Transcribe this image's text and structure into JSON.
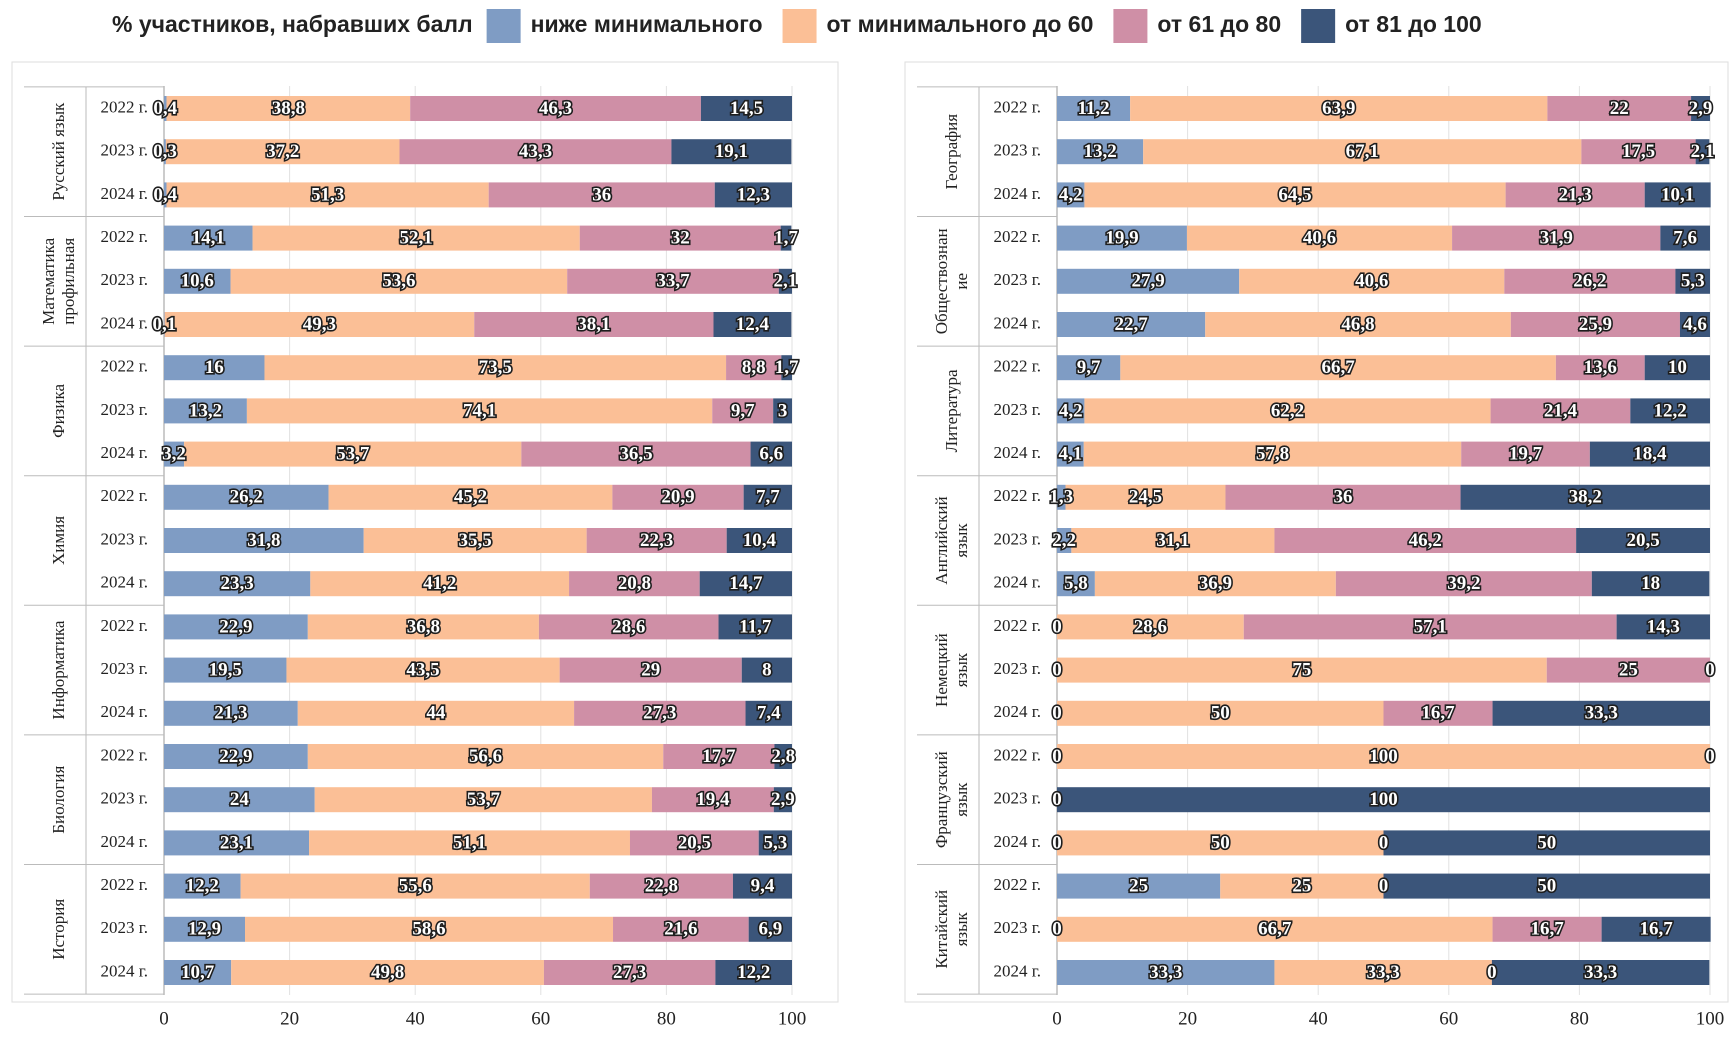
{
  "legend": {
    "title": "% участников, набравших балл",
    "items": [
      {
        "name": "ниже минимального",
        "color": "#7f9cc4"
      },
      {
        "name": "от минимального до 60",
        "color": "#fbbf96"
      },
      {
        "name": "от 61 до 80",
        "color": "#cf8fa6"
      },
      {
        "name": "от 81 до 100",
        "color": "#3b557a"
      }
    ]
  },
  "chart_data": [
    {
      "type": "bar",
      "orientation": "horizontal",
      "stacked": true,
      "xlim": [
        0,
        100
      ],
      "xticks": [
        0,
        20,
        40,
        60,
        80,
        100
      ],
      "grid": true,
      "groups": [
        {
          "label": [
            "Русский язык"
          ],
          "rows": [
            {
              "category": "2022 г.",
              "values": [
                0.4,
                38.8,
                46.3,
                14.5
              ],
              "value_labels": [
                "0,4",
                "38,8",
                "46,3",
                "14,5"
              ]
            },
            {
              "category": "2023 г.",
              "values": [
                0.3,
                37.2,
                43.3,
                19.1
              ],
              "value_labels": [
                "0,3",
                "37,2",
                "43,3",
                "19,1"
              ]
            },
            {
              "category": "2024 г.",
              "values": [
                0.4,
                51.3,
                36,
                12.3
              ],
              "value_labels": [
                "0,4",
                "51,3",
                "36",
                "12,3"
              ]
            }
          ]
        },
        {
          "label": [
            "Математика",
            "профильная"
          ],
          "rows": [
            {
              "category": "2022 г.",
              "values": [
                14.1,
                52.1,
                32,
                1.7
              ],
              "value_labels": [
                "14,1",
                "52,1",
                "32",
                "1,7"
              ]
            },
            {
              "category": "2023 г.",
              "values": [
                10.6,
                53.6,
                33.7,
                2.1
              ],
              "value_labels": [
                "10,6",
                "53,6",
                "33,7",
                "2,1"
              ]
            },
            {
              "category": "2024 г.",
              "values": [
                0.1,
                49.3,
                38.1,
                12.4
              ],
              "value_labels": [
                "0,1",
                "49,3",
                "38,1",
                "12,4"
              ]
            }
          ]
        },
        {
          "label": [
            "Физика"
          ],
          "rows": [
            {
              "category": "2022 г.",
              "values": [
                16,
                73.5,
                8.8,
                1.7
              ],
              "value_labels": [
                "16",
                "73,5",
                "8,8",
                "1,7"
              ]
            },
            {
              "category": "2023 г.",
              "values": [
                13.2,
                74.1,
                9.7,
                3
              ],
              "value_labels": [
                "13,2",
                "74,1",
                "9,7",
                "3"
              ]
            },
            {
              "category": "2024 г.",
              "values": [
                3.2,
                53.7,
                36.5,
                6.6
              ],
              "value_labels": [
                "3,2",
                "53,7",
                "36,5",
                "6,6"
              ]
            }
          ]
        },
        {
          "label": [
            "Химия"
          ],
          "rows": [
            {
              "category": "2022 г.",
              "values": [
                26.2,
                45.2,
                20.9,
                7.7
              ],
              "value_labels": [
                "26,2",
                "45,2",
                "20,9",
                "7,7"
              ]
            },
            {
              "category": "2023 г.",
              "values": [
                31.8,
                35.5,
                22.3,
                10.4
              ],
              "value_labels": [
                "31,8",
                "35,5",
                "22,3",
                "10,4"
              ]
            },
            {
              "category": "2024 г.",
              "values": [
                23.3,
                41.2,
                20.8,
                14.7
              ],
              "value_labels": [
                "23,3",
                "41,2",
                "20,8",
                "14,7"
              ]
            }
          ]
        },
        {
          "label": [
            "Информатика"
          ],
          "rows": [
            {
              "category": "2022 г.",
              "values": [
                22.9,
                36.8,
                28.6,
                11.7
              ],
              "value_labels": [
                "22,9",
                "36,8",
                "28,6",
                "11,7"
              ]
            },
            {
              "category": "2023 г.",
              "values": [
                19.5,
                43.5,
                29,
                8
              ],
              "value_labels": [
                "19,5",
                "43,5",
                "29",
                "8"
              ]
            },
            {
              "category": "2024 г.",
              "values": [
                21.3,
                44,
                27.3,
                7.4
              ],
              "value_labels": [
                "21,3",
                "44",
                "27,3",
                "7,4"
              ]
            }
          ]
        },
        {
          "label": [
            "Биология"
          ],
          "rows": [
            {
              "category": "2022 г.",
              "values": [
                22.9,
                56.6,
                17.7,
                2.8
              ],
              "value_labels": [
                "22,9",
                "56,6",
                "17,7",
                "2,8"
              ]
            },
            {
              "category": "2023 г.",
              "values": [
                24,
                53.7,
                19.4,
                2.9
              ],
              "value_labels": [
                "24",
                "53,7",
                "19,4",
                "2,9"
              ]
            },
            {
              "category": "2024 г.",
              "values": [
                23.1,
                51.1,
                20.5,
                5.3
              ],
              "value_labels": [
                "23,1",
                "51,1",
                "20,5",
                "5,3"
              ]
            }
          ]
        },
        {
          "label": [
            "История"
          ],
          "rows": [
            {
              "category": "2022 г.",
              "values": [
                12.2,
                55.6,
                22.8,
                9.4
              ],
              "value_labels": [
                "12,2",
                "55,6",
                "22,8",
                "9,4"
              ]
            },
            {
              "category": "2023 г.",
              "values": [
                12.9,
                58.6,
                21.6,
                6.9
              ],
              "value_labels": [
                "12,9",
                "58,6",
                "21,6",
                "6,9"
              ]
            },
            {
              "category": "2024 г.",
              "values": [
                10.7,
                49.8,
                27.3,
                12.2
              ],
              "value_labels": [
                "10,7",
                "49,8",
                "27,3",
                "12,2"
              ]
            }
          ]
        }
      ]
    },
    {
      "type": "bar",
      "orientation": "horizontal",
      "stacked": true,
      "xlim": [
        0,
        100
      ],
      "xticks": [
        0,
        20,
        40,
        60,
        80,
        100
      ],
      "grid": true,
      "groups": [
        {
          "label": [
            "География"
          ],
          "rows": [
            {
              "category": "2022 г.",
              "values": [
                11.2,
                63.9,
                22,
                2.9
              ],
              "value_labels": [
                "11,2",
                "63,9",
                "22",
                "2,9"
              ]
            },
            {
              "category": "2023 г.",
              "values": [
                13.2,
                67.1,
                17.5,
                2.1
              ],
              "value_labels": [
                "13,2",
                "67,1",
                "17,5",
                "2,1"
              ]
            },
            {
              "category": "2024 г.",
              "values": [
                4.2,
                64.5,
                21.3,
                10.1
              ],
              "value_labels": [
                "4,2",
                "64,5",
                "21,3",
                "10,1"
              ]
            }
          ]
        },
        {
          "label": [
            "Обществознан",
            "ие"
          ],
          "rows": [
            {
              "category": "2022 г.",
              "values": [
                19.9,
                40.6,
                31.9,
                7.6
              ],
              "value_labels": [
                "19,9",
                "40,6",
                "31,9",
                "7,6"
              ]
            },
            {
              "category": "2023 г.",
              "values": [
                27.9,
                40.6,
                26.2,
                5.3
              ],
              "value_labels": [
                "27,9",
                "40,6",
                "26,2",
                "5,3"
              ]
            },
            {
              "category": "2024 г.",
              "values": [
                22.7,
                46.8,
                25.9,
                4.6
              ],
              "value_labels": [
                "22,7",
                "46,8",
                "25,9",
                "4,6"
              ]
            }
          ]
        },
        {
          "label": [
            "Литература"
          ],
          "rows": [
            {
              "category": "2022 г.",
              "values": [
                9.7,
                66.7,
                13.6,
                10
              ],
              "value_labels": [
                "9,7",
                "66,7",
                "13,6",
                "10"
              ]
            },
            {
              "category": "2023 г.",
              "values": [
                4.2,
                62.2,
                21.4,
                12.2
              ],
              "value_labels": [
                "4,2",
                "62,2",
                "21,4",
                "12,2"
              ]
            },
            {
              "category": "2024 г.",
              "values": [
                4.1,
                57.8,
                19.7,
                18.4
              ],
              "value_labels": [
                "4,1",
                "57,8",
                "19,7",
                "18,4"
              ]
            }
          ]
        },
        {
          "label": [
            "Английский",
            "язык"
          ],
          "rows": [
            {
              "category": "2022 г.",
              "values": [
                1.3,
                24.5,
                36,
                38.2
              ],
              "value_labels": [
                "1,3",
                "24,5",
                "36",
                "38,2"
              ]
            },
            {
              "category": "2023 г.",
              "values": [
                2.2,
                31.1,
                46.2,
                20.5
              ],
              "value_labels": [
                "2,2",
                "31,1",
                "46,2",
                "20,5"
              ]
            },
            {
              "category": "2024 г.",
              "values": [
                5.8,
                36.9,
                39.2,
                18
              ],
              "value_labels": [
                "5,8",
                "36,9",
                "39,2",
                "18"
              ]
            }
          ]
        },
        {
          "label": [
            "Немецкий",
            "язык"
          ],
          "rows": [
            {
              "category": "2022 г.",
              "values": [
                0,
                28.6,
                57.1,
                14.3
              ],
              "value_labels": [
                "0",
                "28,6",
                "57,1",
                "14,3"
              ]
            },
            {
              "category": "2023 г.",
              "values": [
                0,
                75,
                25,
                0
              ],
              "value_labels": [
                "0",
                "75",
                "25",
                "0"
              ]
            },
            {
              "category": "2024 г.",
              "values": [
                0,
                50,
                16.7,
                33.3
              ],
              "value_labels": [
                "0",
                "50",
                "16,7",
                "33,3"
              ]
            }
          ]
        },
        {
          "label": [
            "Французский",
            "язык"
          ],
          "rows": [
            {
              "category": "2022 г.",
              "values": [
                0,
                100,
                0,
                0
              ],
              "value_labels": [
                "0",
                "100",
                null,
                "0"
              ]
            },
            {
              "category": "2023 г.",
              "values": [
                0,
                0,
                0,
                100
              ],
              "value_labels": [
                "0",
                null,
                null,
                "100"
              ]
            },
            {
              "category": "2024 г.",
              "values": [
                0,
                50,
                0,
                50
              ],
              "value_labels": [
                "0",
                "50",
                "0",
                "50"
              ]
            }
          ]
        },
        {
          "label": [
            "Китайский",
            "язык"
          ],
          "rows": [
            {
              "category": "2022 г.",
              "values": [
                25,
                25,
                0,
                50
              ],
              "value_labels": [
                "25",
                "25",
                "0",
                "50"
              ]
            },
            {
              "category": "2023 г.",
              "values": [
                0,
                66.7,
                16.7,
                16.7
              ],
              "value_labels": [
                "0",
                "66,7",
                "16,7",
                "16,7"
              ]
            },
            {
              "category": "2024 г.",
              "values": [
                33.3,
                33.3,
                0,
                33.3
              ],
              "value_labels": [
                "33,3",
                "33,3",
                "0",
                "33,3"
              ]
            }
          ]
        }
      ]
    }
  ]
}
